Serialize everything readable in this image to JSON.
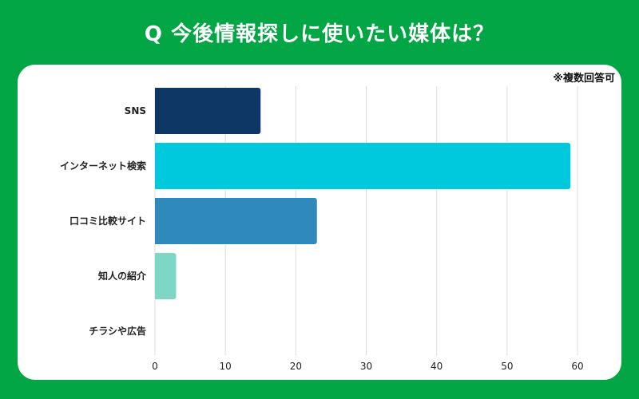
{
  "title": "Q 今後情報探しに使いたい媒体は？",
  "note": "※複数回答可",
  "chart_data": {
    "type": "bar",
    "orientation": "horizontal",
    "title": "Q 今後情報探しに使いたい媒体は？",
    "categories": [
      "SNS",
      "インターネット検索",
      "口コミ比較サイト",
      "知人の紹介",
      "チラシや広告"
    ],
    "values": [
      15,
      59,
      23,
      3,
      0
    ],
    "colors": [
      "#0f3766",
      "#00c9de",
      "#2f8abb",
      "#7ed6c4",
      "#cccccc"
    ],
    "xlim": [
      0,
      60
    ],
    "xticks": [
      "0",
      "10",
      "20",
      "30",
      "40",
      "50",
      "60"
    ],
    "grid": true,
    "legend": "none"
  },
  "colors": {
    "background": "#03a644",
    "card": "#ffffff",
    "grid": "#dcdce4"
  }
}
